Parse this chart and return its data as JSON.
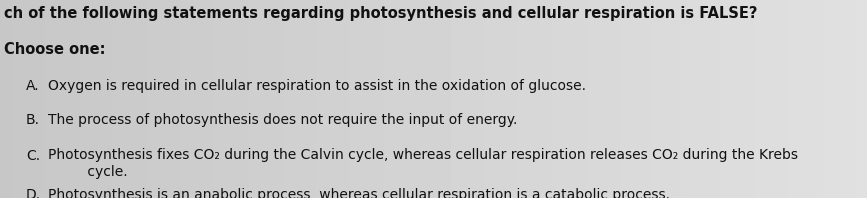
{
  "bg_color": "#c8c8c8",
  "title_line": "ch of the following statements regarding photosynthesis and cellular respiration is FALSE?",
  "choose_label": "Choose one:",
  "options": [
    {
      "letter": "A.",
      "text": "Oxygen is required in cellular respiration to assist in the oxidation of glucose."
    },
    {
      "letter": "B.",
      "text": "The process of photosynthesis does not require the input of energy."
    },
    {
      "letter": "C.",
      "text": "Photosynthesis fixes CO₂ during the Calvin cycle, whereas cellular respiration releases CO₂ during the Krebs\n         cycle."
    },
    {
      "letter": "D.",
      "text": "Photosynthesis is an anabolic process, whereas cellular respiration is a catabolic process."
    }
  ],
  "title_fontsize": 10.5,
  "choose_fontsize": 10.5,
  "option_fontsize": 10,
  "title_color": "#111111",
  "choose_color": "#111111",
  "option_color": "#111111"
}
